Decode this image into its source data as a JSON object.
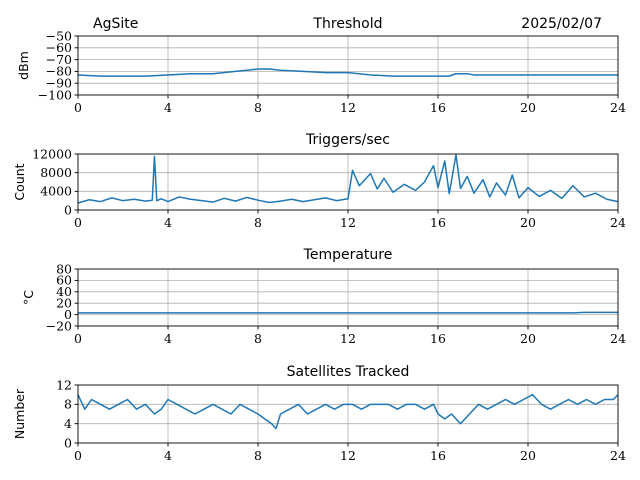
{
  "header": {
    "site": "AgSite",
    "date": "2025/02/07"
  },
  "chart_data": [
    {
      "type": "line",
      "title": "Threshold",
      "xlabel": "",
      "ylabel": "dBm",
      "xlim": [
        0,
        24
      ],
      "ylim": [
        -100,
        -50
      ],
      "xticks": [
        0,
        4,
        8,
        12,
        16,
        20,
        24
      ],
      "yticks": [
        -100,
        -90,
        -80,
        -70,
        -60,
        -50
      ],
      "ytick_labels": [
        "−100",
        "−90",
        "−80",
        "−70",
        "−60",
        "−50"
      ],
      "grid": true,
      "color": "#1f77b4",
      "series": [
        {
          "x": [
            0,
            1,
            2,
            3,
            4,
            5,
            6,
            7,
            7.5,
            8,
            8.5,
            9,
            10,
            11,
            12,
            12.5,
            13,
            14,
            15,
            16,
            16.5,
            16.8,
            17.3,
            17.6,
            18,
            19,
            20,
            21,
            22,
            23,
            24
          ],
          "values": [
            -83,
            -84,
            -84,
            -84,
            -83,
            -82,
            -82,
            -80,
            -79,
            -78,
            -78,
            -79,
            -80,
            -81,
            -81,
            -82,
            -83,
            -84,
            -84,
            -84,
            -84,
            -82,
            -82,
            -83,
            -83,
            -83,
            -83,
            -83,
            -83,
            -83,
            -83
          ]
        }
      ]
    },
    {
      "type": "line",
      "title": "Triggers/sec",
      "xlabel": "",
      "ylabel": "Count",
      "xlim": [
        0,
        24
      ],
      "ylim": [
        0,
        12000
      ],
      "xticks": [
        0,
        4,
        8,
        12,
        16,
        20,
        24
      ],
      "yticks": [
        0,
        4000,
        8000,
        12000
      ],
      "ytick_labels": [
        "0",
        "4000",
        "8000",
        "12000"
      ],
      "grid": true,
      "color": "#1f77b4",
      "series": [
        {
          "x": [
            0,
            0.5,
            1,
            1.5,
            2,
            2.5,
            3,
            3.3,
            3.4,
            3.5,
            3.7,
            4,
            4.5,
            5,
            5.5,
            6,
            6.5,
            7,
            7.5,
            8,
            8.5,
            9,
            9.5,
            10,
            10.5,
            11,
            11.5,
            12,
            12.2,
            12.5,
            13,
            13.3,
            13.6,
            14,
            14.5,
            15,
            15.4,
            15.8,
            16,
            16.3,
            16.5,
            16.8,
            17,
            17.3,
            17.6,
            18,
            18.3,
            18.6,
            19,
            19.3,
            19.6,
            20,
            20.5,
            21,
            21.5,
            22,
            22.5,
            23,
            23.5,
            24
          ],
          "values": [
            1500,
            2200,
            1800,
            2600,
            2000,
            2300,
            1900,
            2100,
            11500,
            2000,
            2400,
            1800,
            2800,
            2300,
            2000,
            1700,
            2500,
            1900,
            2700,
            2100,
            1600,
            1900,
            2300,
            1800,
            2200,
            2600,
            2000,
            2400,
            8500,
            5200,
            7800,
            4500,
            6800,
            3800,
            5500,
            4200,
            6000,
            9500,
            4800,
            10500,
            3500,
            11800,
            4600,
            7200,
            3600,
            6500,
            2800,
            5800,
            3200,
            7500,
            2600,
            4800,
            2900,
            4200,
            2500,
            5200,
            2800,
            3600,
            2300,
            1800
          ]
        }
      ]
    },
    {
      "type": "line",
      "title": "Temperature",
      "xlabel": "",
      "ylabel": "°C",
      "xlim": [
        0,
        24
      ],
      "ylim": [
        -20,
        80
      ],
      "xticks": [
        0,
        4,
        8,
        12,
        16,
        20,
        24
      ],
      "yticks": [
        -20,
        0,
        20,
        40,
        60,
        80
      ],
      "ytick_labels": [
        "−20",
        "0",
        "20",
        "40",
        "60",
        "80"
      ],
      "grid": true,
      "color": "#1f77b4",
      "series": [
        {
          "x": [
            0,
            4,
            8,
            12,
            16,
            20,
            22,
            22.5,
            24
          ],
          "values": [
            3,
            3,
            3,
            3,
            3,
            3,
            3,
            4,
            4
          ]
        }
      ]
    },
    {
      "type": "line",
      "title": "Satellites Tracked",
      "xlabel": "",
      "ylabel": "Number",
      "xlim": [
        0,
        24
      ],
      "ylim": [
        0,
        12
      ],
      "xticks": [
        0,
        4,
        8,
        12,
        16,
        20,
        24
      ],
      "yticks": [
        0,
        4,
        8,
        12
      ],
      "ytick_labels": [
        "0",
        "4",
        "8",
        "12"
      ],
      "grid": true,
      "color": "#1f77b4",
      "series": [
        {
          "x": [
            0,
            0.3,
            0.6,
            1,
            1.4,
            1.8,
            2.2,
            2.6,
            3,
            3.4,
            3.7,
            4,
            4.4,
            4.8,
            5.2,
            5.6,
            6,
            6.4,
            6.8,
            7.2,
            7.6,
            8,
            8.3,
            8.6,
            8.8,
            9,
            9.4,
            9.8,
            10.2,
            10.6,
            11,
            11.4,
            11.8,
            12.2,
            12.6,
            13,
            13.4,
            13.8,
            14.2,
            14.6,
            15,
            15.4,
            15.8,
            16,
            16.3,
            16.6,
            17,
            17.4,
            17.8,
            18.2,
            18.6,
            19,
            19.4,
            19.8,
            20.2,
            20.6,
            21,
            21.4,
            21.8,
            22.2,
            22.6,
            23,
            23.4,
            23.8,
            24
          ],
          "values": [
            10,
            7,
            9,
            8,
            7,
            8,
            9,
            7,
            8,
            6,
            7,
            9,
            8,
            7,
            6,
            7,
            8,
            7,
            6,
            8,
            7,
            6,
            5,
            4,
            3,
            6,
            7,
            8,
            6,
            7,
            8,
            7,
            8,
            8,
            7,
            8,
            8,
            8,
            7,
            8,
            8,
            7,
            8,
            6,
            5,
            6,
            4,
            6,
            8,
            7,
            8,
            9,
            8,
            9,
            10,
            8,
            7,
            8,
            9,
            8,
            9,
            8,
            9,
            9,
            10
          ]
        }
      ]
    }
  ]
}
